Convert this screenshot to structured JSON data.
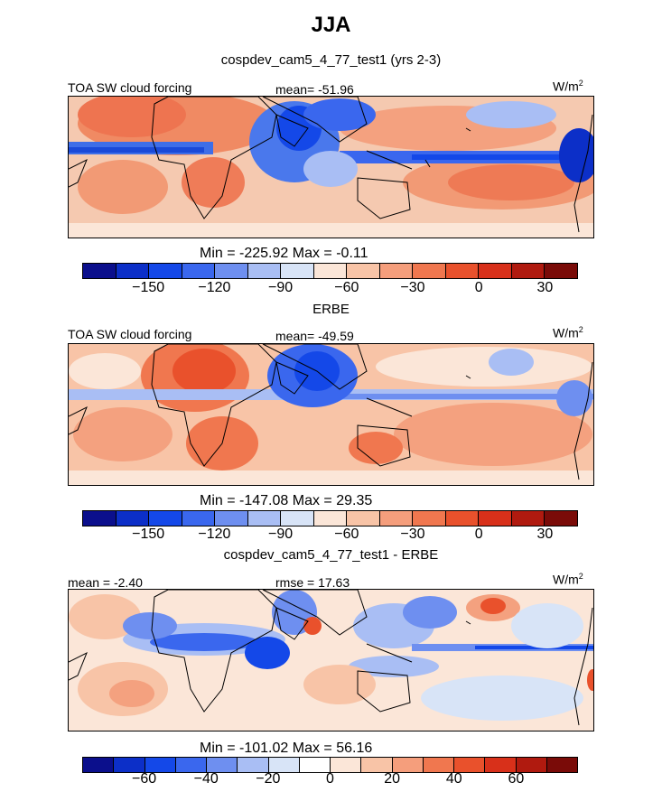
{
  "page": {
    "title": "JJA",
    "units_label": "W/m",
    "units_sup": "2"
  },
  "colorbars": {
    "main": [
      "#0b0f8c",
      "#0c2fc8",
      "#1448e8",
      "#3a67ee",
      "#6e8ff0",
      "#a9bef4",
      "#d8e4f7",
      "#fbe6d8",
      "#f8c4a7",
      "#f59e7c",
      "#f0774f",
      "#e9512c",
      "#d8301a",
      "#b01a0f",
      "#7a0b08"
    ],
    "diff": [
      "#0b0f8c",
      "#0c2fc8",
      "#1448e8",
      "#3a67ee",
      "#6e8ff0",
      "#a9bef4",
      "#d8e4f7",
      "#ffffff",
      "#fbe6d8",
      "#f8c4a7",
      "#f59e7c",
      "#f0774f",
      "#e9512c",
      "#d8301a",
      "#b01a0f",
      "#7a0b08"
    ]
  },
  "chart_data": [
    {
      "type": "heatmap",
      "subtitle": "cospdev_cam5_4_77_test1 (yrs 2-3)",
      "variable": "TOA SW cloud forcing",
      "units": "W/m2",
      "mean_label": "mean=",
      "mean": "-51.96",
      "min_label": "Min =",
      "min": "-225.92",
      "max_label": "Max =",
      "max": "-0.11",
      "colorbar_ticks": [
        "-150",
        "-120",
        "-90",
        "-60",
        "-30",
        "0",
        "30"
      ]
    },
    {
      "type": "heatmap",
      "subtitle": "ERBE",
      "variable": "TOA SW cloud forcing",
      "units": "W/m2",
      "mean_label": "mean=",
      "mean": "-49.59",
      "min_label": "Min =",
      "min": "-147.08",
      "max_label": "Max =",
      "max": "29.35",
      "colorbar_ticks": [
        "-150",
        "-120",
        "-90",
        "-60",
        "-30",
        "0",
        "30"
      ]
    },
    {
      "type": "heatmap",
      "subtitle": "cospdev_cam5_4_77_test1 - ERBE",
      "units": "W/m2",
      "mean_label": "mean =",
      "mean": "-2.40",
      "rmse_label": "rmse =",
      "rmse": "17.63",
      "min_label": "Min =",
      "min": "-101.02",
      "max_label": "Max =",
      "max": "56.16",
      "colorbar_ticks": [
        "-60",
        "-40",
        "-20",
        "0",
        "20",
        "40",
        "60"
      ]
    }
  ]
}
